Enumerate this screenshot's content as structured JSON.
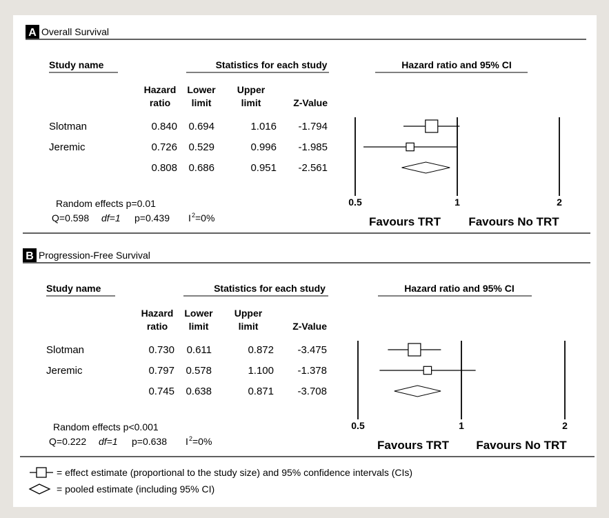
{
  "chart_data": [
    {
      "type": "forest",
      "panel_letter": "A",
      "title": "Overall Survival",
      "headers": {
        "study_name": "Study name",
        "stats": "Statistics for each study",
        "plot": "Hazard ratio and 95% CI",
        "hazard_ratio": [
          "Hazard",
          "ratio"
        ],
        "lower_limit": [
          "Lower",
          "limit"
        ],
        "upper_limit": [
          "Upper",
          "limit"
        ],
        "z_value": "Z-Value"
      },
      "studies": [
        {
          "name": "Slotman",
          "hr": "0.840",
          "lower": "0.694",
          "upper": "1.016",
          "z": "-1.794",
          "hr_value": 0.84,
          "lower_value": 0.694,
          "upper_value": 1.016,
          "weight": 1.0
        },
        {
          "name": "Jeremic",
          "hr": "0.726",
          "lower": "0.529",
          "upper": "0.996",
          "z": "-1.985",
          "hr_value": 0.726,
          "lower_value": 0.529,
          "upper_value": 0.996,
          "weight": 0.45
        }
      ],
      "pooled": {
        "hr": "0.808",
        "lower": "0.686",
        "upper": "0.951",
        "z": "-2.561",
        "hr_value": 0.808,
        "lower_value": 0.686,
        "upper_value": 0.951
      },
      "x_scale": "log",
      "x_ticks": [
        "0.5",
        "1",
        "2"
      ],
      "x_tick_values": [
        0.5,
        1,
        2
      ],
      "favours_left": "Favours TRT",
      "favours_right": "Favours No TRT",
      "random_effects": "Random effects p=0.01",
      "heterogeneity": {
        "q": "Q=0.598",
        "df": "df=1",
        "p": "p=0.439",
        "i2_symbol": "I",
        "i2_sup": "2",
        "i2_value": "=0%"
      }
    },
    {
      "type": "forest",
      "panel_letter": "B",
      "title": "Progression-Free Survival",
      "headers": {
        "study_name": "Study name",
        "stats": "Statistics for each study",
        "plot": "Hazard ratio and 95% CI",
        "hazard_ratio": [
          "Hazard",
          "ratio"
        ],
        "lower_limit": [
          "Lower",
          "limit"
        ],
        "upper_limit": [
          "Upper",
          "limit"
        ],
        "z_value": "Z-Value"
      },
      "studies": [
        {
          "name": "Slotman",
          "hr": "0.730",
          "lower": "0.611",
          "upper": "0.872",
          "z": "-3.475",
          "hr_value": 0.73,
          "lower_value": 0.611,
          "upper_value": 0.872,
          "weight": 1.0
        },
        {
          "name": "Jeremic",
          "hr": "0.797",
          "lower": "0.578",
          "upper": "1.100",
          "z": "-1.378",
          "hr_value": 0.797,
          "lower_value": 0.578,
          "upper_value": 1.1,
          "weight": 0.45
        }
      ],
      "pooled": {
        "hr": "0.745",
        "lower": "0.638",
        "upper": "0.871",
        "z": "-3.708",
        "hr_value": 0.745,
        "lower_value": 0.638,
        "upper_value": 0.871
      },
      "x_scale": "log",
      "x_ticks": [
        "0.5",
        "1",
        "2"
      ],
      "x_tick_values": [
        0.5,
        1,
        2
      ],
      "favours_left": "Favours TRT",
      "favours_right": "Favours No TRT",
      "random_effects": "Random effects p<0.001",
      "heterogeneity": {
        "q": "Q=0.222",
        "df": "df=1",
        "p": "p=0.638",
        "i2_symbol": "I",
        "i2_sup": "2",
        "i2_value": "=0%"
      }
    }
  ],
  "legend": {
    "square_text": "= effect estimate (proportional to the study size) and 95% confidence intervals (CIs)",
    "diamond_text": "= pooled estimate (including 95% CI)"
  },
  "colors": {
    "background": "#e7e4df",
    "card": "#ffffff",
    "ink": "#000000",
    "pooled_fill": "#ffffff"
  }
}
